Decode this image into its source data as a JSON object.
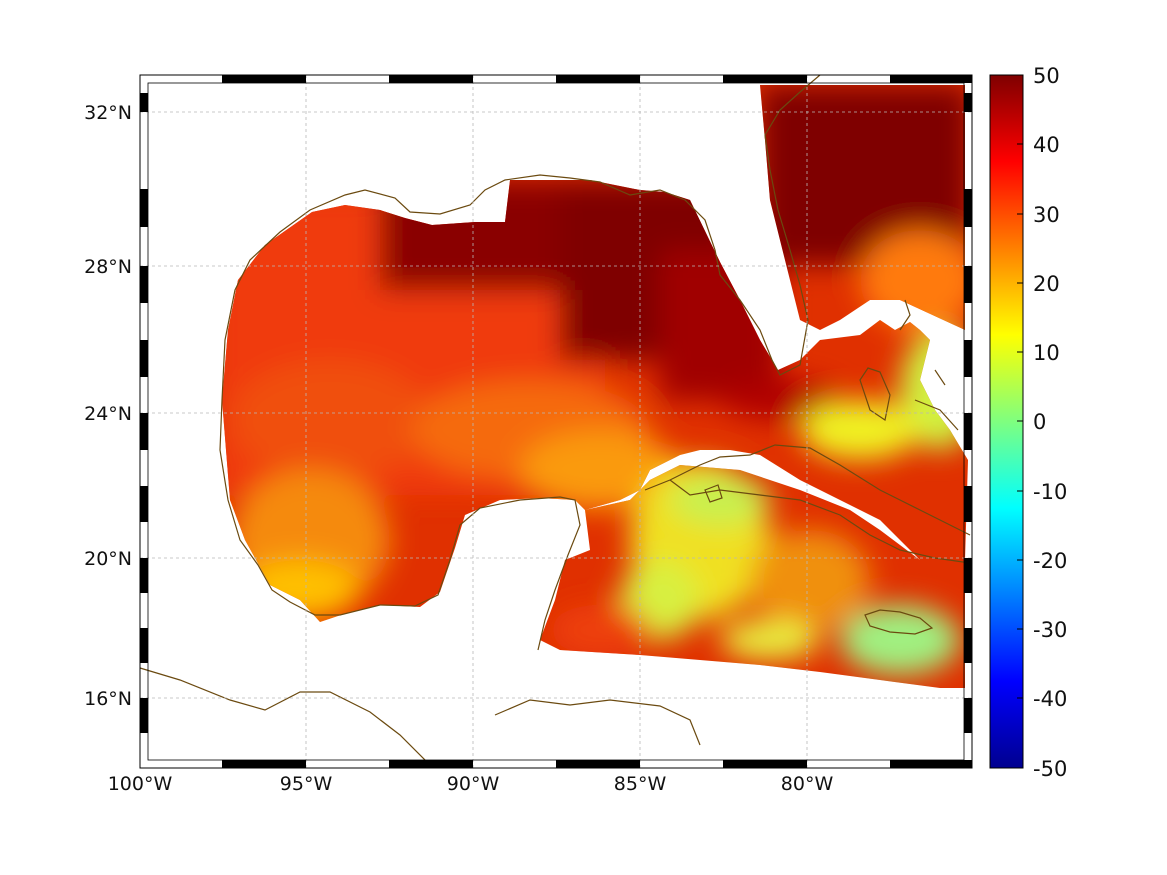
{
  "chart_data": {
    "type": "heatmap",
    "title": "",
    "xlabel": "",
    "ylabel": "",
    "projection": "Mercator",
    "lon_range": [
      -100,
      -75.5
    ],
    "lat_range": [
      14.3,
      33.0
    ],
    "x_ticks": [
      "100°W",
      "95°W",
      "90°W",
      "85°W",
      "80°W"
    ],
    "y_ticks": [
      "32°N",
      "28°N",
      "24°N",
      "20°N",
      "16°N"
    ],
    "grid": true,
    "coastline_color": "#6b4a10",
    "colorbar": {
      "colormap": "jet",
      "range": [
        -50,
        50
      ],
      "placement": "right",
      "tick_labels": [
        "50",
        "40",
        "30",
        "20",
        "10",
        "0",
        "-10",
        "-20",
        "-30",
        "-40",
        "-50"
      ]
    },
    "field_regions": [
      {
        "name": "northern Gulf shelf",
        "approx_value": 50
      },
      {
        "name": "Atlantic off Florida and Georgia",
        "approx_value": 50
      },
      {
        "name": "western and central Gulf",
        "approx_value": 35
      },
      {
        "name": "southwestern Gulf / Bay of Campeche",
        "approx_value": 25
      },
      {
        "name": "Yucatan Channel",
        "approx_value": 20
      },
      {
        "name": "western Caribbean south of Cuba",
        "approx_value": 8
      },
      {
        "name": "Caribbean near Jamaica",
        "approx_value": 5
      }
    ]
  }
}
